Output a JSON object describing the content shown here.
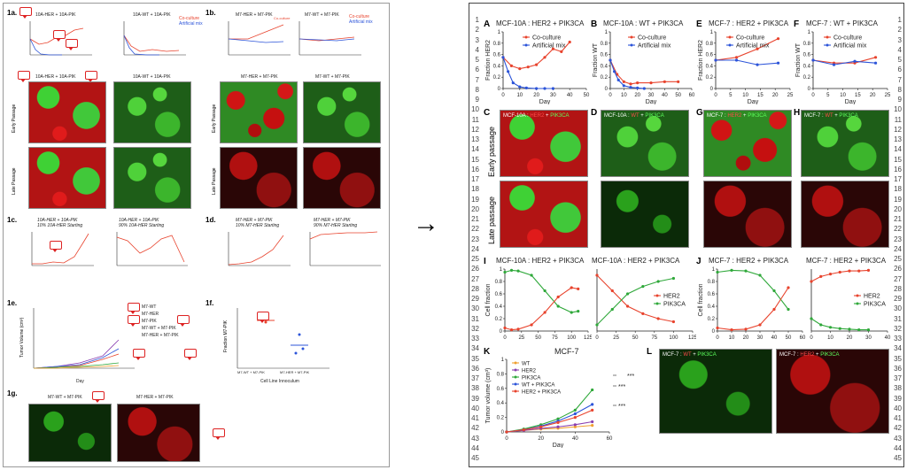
{
  "arrow": "→",
  "left_doc": {
    "labels": {
      "a": "1a.",
      "b": "1b.",
      "c": "1c.",
      "d": "1d.",
      "e": "1e.",
      "f": "1f.",
      "g": "1g."
    },
    "titles": {
      "a1": "10A-HER + 10A-PIK",
      "a2": "10A-WT + 10A-PIK",
      "b1": "M7-HER + M7-PIK",
      "b2": "M7-WT + M7-PIK",
      "img_a1": "10A-HER + 10A-PIK",
      "img_a2": "10A-WT + 10A-PIK",
      "img_b1": "M7-HER + M7-PIK",
      "img_b2": "M7-WT + M7-PIK",
      "c1": "10A-HER + 10A-PIK",
      "c1_sub": "10% 10A-HER Starting",
      "c2": "10A-HER + 10A-PIK",
      "c2_sub": "90% 10A-HER Starting",
      "d1": "M7-HER + M7-PIK",
      "d1_sub": "10% M7-HER Starting",
      "d2": "M7-HER + M7-PIK",
      "d2_sub": "90% M7-HER Starting",
      "g1": "M7-WT + M7-PIK",
      "g2": "M7-HER + M7-PIK"
    },
    "legend_ab": [
      "Co-culture",
      "Artificial mix"
    ],
    "row_labels": {
      "early": "Early Passage",
      "late": "Late Passage"
    },
    "e_legend": [
      "M7-WT",
      "M7-HER",
      "M7-PIK",
      "M7-WT + M7-PIK",
      "M7-HER + M7-PIK"
    ],
    "e_axes": {
      "y": "Tumor Volume (cm³)",
      "x": "Day"
    },
    "f_axes": {
      "y": "Fraction M7-PIK",
      "x": "Cell Line Innoculum"
    },
    "f_ticks": [
      "M7-WT + M7-PIK",
      "M7-HER + M7-PIK"
    ]
  },
  "right_doc": {
    "row_numbers": [
      "1",
      "2",
      "3",
      "4",
      "5",
      "6",
      "7",
      "8",
      "9",
      "10",
      "11",
      "12",
      "13",
      "14",
      "15",
      "16",
      "17",
      "18",
      "19",
      "20",
      "21",
      "22",
      "23",
      "24",
      "25",
      "26",
      "27",
      "28",
      "29",
      "30",
      "31",
      "32",
      "33",
      "34",
      "35",
      "36",
      "37",
      "38",
      "39",
      "40",
      "41",
      "42",
      "43",
      "44",
      "45"
    ],
    "row_numbers_right": [
      "1",
      "2",
      "3",
      "4",
      "5",
      "6",
      "7",
      "8",
      "9",
      "10",
      "11",
      "12",
      "13",
      "14",
      "15",
      "16",
      "17",
      "18",
      "19",
      "20",
      "21",
      "22",
      "23",
      "24",
      "25",
      "26",
      "27",
      "28",
      "29",
      "30",
      "31",
      "32",
      "33",
      "34",
      "35",
      "36",
      "37",
      "38",
      "39",
      "40",
      "41",
      "42",
      "43",
      "44",
      "45"
    ],
    "panel_letters": {
      "A": "A",
      "B": "B",
      "C": "C",
      "D": "D",
      "E": "E",
      "F": "F",
      "G": "G",
      "H": "H",
      "I": "I",
      "J": "J",
      "K": "K",
      "L": "L"
    },
    "titles": {
      "A": "MCF-10A : HER2 + PIK3CA",
      "B": "MCF-10A : WT + PIK3CA",
      "E": "MCF-7 : HER2 + PIK3CA",
      "F": "MCF-7 : WT + PIK3CA",
      "I1": "MCF-10A : HER2 + PIK3CA",
      "I2": "MCF-10A : HER2 + PIK3CA",
      "J1": "MCF-7 : HER2 + PIK3CA",
      "J2": "MCF-7 : HER2 + PIK3CA",
      "K": "MCF-7"
    },
    "legend_AB": [
      "Co-culture",
      "Artificial mix"
    ],
    "legend_IJ": [
      "HER2",
      "PIK3CA"
    ],
    "legend_K": [
      "WT",
      "HER2",
      "PIK3CA",
      "WT + PIK3CA",
      "HER2 + PIK3CA"
    ],
    "ylabels": {
      "A": "Fraction HER2",
      "B": "Fraction WT",
      "E": "Fraction HER2",
      "F": "Fraction WT",
      "I": "Cell fraction",
      "J": "Cell fraction",
      "K": "Tumor volume (cm³)"
    },
    "xlabel": "Day",
    "row_labels": {
      "early": "Early passage",
      "late": "Late passage"
    },
    "micro_captions": {
      "C": [
        "MCF-10A : ",
        "HER2",
        " + ",
        "PIK3CA"
      ],
      "D": [
        "MCF-10A : ",
        "WT",
        " + ",
        "PIK3CA"
      ],
      "G": [
        "MCF-7 : ",
        "HER2",
        " + ",
        "PIK3CA"
      ],
      "H": [
        "MCF-7 : ",
        "WT",
        " + ",
        "PIK3CA"
      ],
      "L1": [
        "MCF-7 : ",
        "WT",
        " + ",
        "PIK3CA"
      ],
      "L2": [
        "MCF-7 : ",
        "HER2",
        " + ",
        "PIK3CA"
      ]
    },
    "significance": [
      "***",
      "***",
      "***"
    ]
  },
  "colors": {
    "red": "#e8432d",
    "blue": "#2c54d9",
    "green": "#2fa83a",
    "orange": "#f0a030",
    "purple": "#8a3fb0",
    "micro_red": "#c81414",
    "micro_green": "#3ec132"
  },
  "chart_data": [
    {
      "id": "A",
      "type": "line",
      "title": "MCF-10A : HER2 + PIK3CA",
      "xlabel": "Day",
      "ylabel": "Fraction HER2",
      "xlim": [
        0,
        50
      ],
      "ylim": [
        0,
        1
      ],
      "xticks": [
        0,
        10,
        20,
        30,
        40,
        50
      ],
      "yticks": [
        0,
        0.2,
        0.4,
        0.6,
        0.8,
        1.0
      ],
      "series": [
        {
          "name": "Co-culture",
          "color": "#e8432d",
          "x": [
            0,
            5,
            10,
            15,
            20,
            25,
            30,
            35,
            40
          ],
          "y": [
            0.55,
            0.4,
            0.35,
            0.38,
            0.42,
            0.55,
            0.7,
            0.65,
            0.82
          ]
        },
        {
          "name": "Artificial mix",
          "color": "#2c54d9",
          "x": [
            0,
            3,
            6,
            10,
            14,
            20,
            25,
            30
          ],
          "y": [
            0.55,
            0.3,
            0.1,
            0.03,
            0.01,
            0.0,
            0.0,
            0.0
          ]
        }
      ]
    },
    {
      "id": "B",
      "type": "line",
      "title": "MCF-10A : WT + PIK3CA",
      "xlabel": "Day",
      "ylabel": "Fraction WT",
      "xlim": [
        0,
        60
      ],
      "ylim": [
        0,
        1
      ],
      "xticks": [
        0,
        10,
        20,
        30,
        40,
        50,
        60
      ],
      "yticks": [
        0,
        0.2,
        0.4,
        0.6,
        0.8,
        1.0
      ],
      "series": [
        {
          "name": "Co-culture",
          "color": "#e8432d",
          "x": [
            0,
            5,
            10,
            15,
            20,
            30,
            40,
            50
          ],
          "y": [
            0.5,
            0.25,
            0.12,
            0.08,
            0.1,
            0.1,
            0.12,
            0.12
          ]
        },
        {
          "name": "Artificial mix",
          "color": "#2c54d9",
          "x": [
            0,
            3,
            6,
            10,
            15,
            20,
            25
          ],
          "y": [
            0.5,
            0.3,
            0.15,
            0.05,
            0.02,
            0.01,
            0.0
          ]
        }
      ]
    },
    {
      "id": "E",
      "type": "line",
      "title": "MCF-7 : HER2 + PIK3CA",
      "xlabel": "Day",
      "ylabel": "Fraction HER2",
      "xlim": [
        0,
        25
      ],
      "ylim": [
        0,
        1
      ],
      "xticks": [
        0,
        5,
        10,
        15,
        20,
        25
      ],
      "yticks": [
        0,
        0.2,
        0.4,
        0.6,
        0.8,
        1.0
      ],
      "series": [
        {
          "name": "Co-culture",
          "color": "#e8432d",
          "x": [
            0,
            7,
            14,
            21
          ],
          "y": [
            0.5,
            0.55,
            0.7,
            0.88
          ]
        },
        {
          "name": "Artificial mix",
          "color": "#2c54d9",
          "x": [
            0,
            7,
            14,
            21
          ],
          "y": [
            0.5,
            0.5,
            0.42,
            0.45
          ]
        }
      ]
    },
    {
      "id": "F",
      "type": "line",
      "title": "MCF-7 : WT + PIK3CA",
      "xlabel": "Day",
      "ylabel": "Fraction WT",
      "xlim": [
        0,
        25
      ],
      "ylim": [
        0,
        1
      ],
      "xticks": [
        0,
        5,
        10,
        15,
        20,
        25
      ],
      "yticks": [
        0,
        0.2,
        0.4,
        0.6,
        0.8,
        1.0
      ],
      "series": [
        {
          "name": "Co-culture",
          "color": "#e8432d",
          "x": [
            0,
            7,
            14,
            21
          ],
          "y": [
            0.5,
            0.45,
            0.45,
            0.55
          ]
        },
        {
          "name": "Artificial mix",
          "color": "#2c54d9",
          "x": [
            0,
            7,
            14,
            21
          ],
          "y": [
            0.5,
            0.42,
            0.48,
            0.45
          ]
        }
      ]
    },
    {
      "id": "I1",
      "type": "line",
      "title": "MCF-10A : HER2 + PIK3CA",
      "xlabel": "",
      "ylabel": "Cell fraction",
      "xlim": [
        0,
        125
      ],
      "ylim": [
        0,
        1
      ],
      "xticks": [
        0,
        25,
        50,
        75,
        100,
        125
      ],
      "yticks": [
        0,
        0.2,
        0.4,
        0.6,
        0.8,
        1.0
      ],
      "series": [
        {
          "name": "",
          "color": "#2fa83a",
          "x": [
            0,
            10,
            20,
            40,
            60,
            80,
            100,
            110
          ],
          "y": [
            0.95,
            0.98,
            0.97,
            0.9,
            0.65,
            0.4,
            0.3,
            0.32
          ]
        },
        {
          "name": "",
          "color": "#e8432d",
          "x": [
            0,
            10,
            20,
            40,
            60,
            80,
            100,
            110
          ],
          "y": [
            0.05,
            0.02,
            0.03,
            0.1,
            0.3,
            0.55,
            0.7,
            0.68
          ]
        }
      ]
    },
    {
      "id": "I2",
      "type": "line",
      "title": "MCF-10A : HER2 + PIK3CA",
      "xlabel": "",
      "ylabel": "",
      "xlim": [
        0,
        125
      ],
      "ylim": [
        0,
        1
      ],
      "xticks": [
        0,
        25,
        50,
        75,
        100,
        125
      ],
      "yticks": [],
      "series": [
        {
          "name": "HER2",
          "color": "#e8432d",
          "x": [
            0,
            20,
            40,
            60,
            80,
            100
          ],
          "y": [
            0.9,
            0.65,
            0.4,
            0.28,
            0.2,
            0.15
          ]
        },
        {
          "name": "PIK3CA",
          "color": "#2fa83a",
          "x": [
            0,
            20,
            40,
            60,
            80,
            100
          ],
          "y": [
            0.1,
            0.35,
            0.6,
            0.72,
            0.8,
            0.85
          ]
        }
      ]
    },
    {
      "id": "J1",
      "type": "line",
      "title": "MCF-7 : HER2 + PIK3CA",
      "xlabel": "",
      "ylabel": "Cell fraction",
      "xlim": [
        0,
        60
      ],
      "ylim": [
        0,
        1
      ],
      "xticks": [
        0,
        10,
        20,
        30,
        40,
        50,
        60
      ],
      "yticks": [
        0,
        0.2,
        0.4,
        0.6,
        0.8,
        1.0
      ],
      "series": [
        {
          "name": "",
          "color": "#2fa83a",
          "x": [
            0,
            10,
            20,
            30,
            40,
            50
          ],
          "y": [
            0.95,
            0.98,
            0.97,
            0.9,
            0.65,
            0.35
          ]
        },
        {
          "name": "",
          "color": "#e8432d",
          "x": [
            0,
            10,
            20,
            30,
            40,
            50
          ],
          "y": [
            0.05,
            0.02,
            0.03,
            0.1,
            0.35,
            0.7
          ]
        }
      ]
    },
    {
      "id": "J2",
      "type": "line",
      "title": "MCF-7 : HER2 + PIK3CA",
      "xlabel": "",
      "ylabel": "",
      "xlim": [
        0,
        40
      ],
      "ylim": [
        0,
        1
      ],
      "xticks": [
        0,
        10,
        20,
        30,
        40
      ],
      "yticks": [],
      "series": [
        {
          "name": "HER2",
          "color": "#e8432d",
          "x": [
            0,
            5,
            10,
            15,
            20,
            25,
            30
          ],
          "y": [
            0.8,
            0.88,
            0.92,
            0.95,
            0.97,
            0.97,
            0.98
          ]
        },
        {
          "name": "PIK3CA",
          "color": "#2fa83a",
          "x": [
            0,
            5,
            10,
            15,
            20,
            25,
            30
          ],
          "y": [
            0.2,
            0.1,
            0.06,
            0.04,
            0.03,
            0.02,
            0.02
          ]
        }
      ]
    },
    {
      "id": "K",
      "type": "line",
      "title": "MCF-7",
      "xlabel": "Day",
      "ylabel": "Tumor volume (cm³)",
      "xlim": [
        0,
        60
      ],
      "ylim": [
        0,
        1.0
      ],
      "xticks": [
        0,
        20,
        40,
        60
      ],
      "yticks": [
        0,
        0.2,
        0.4,
        0.6,
        0.8,
        1.0
      ],
      "series": [
        {
          "name": "WT",
          "color": "#f0a030",
          "x": [
            0,
            10,
            20,
            30,
            40,
            50
          ],
          "y": [
            0,
            0.02,
            0.04,
            0.05,
            0.07,
            0.09
          ]
        },
        {
          "name": "HER2",
          "color": "#8a3fb0",
          "x": [
            0,
            10,
            20,
            30,
            40,
            50
          ],
          "y": [
            0,
            0.02,
            0.05,
            0.07,
            0.1,
            0.14
          ]
        },
        {
          "name": "PIK3CA",
          "color": "#2fa83a",
          "x": [
            0,
            10,
            20,
            30,
            40,
            50
          ],
          "y": [
            0,
            0.04,
            0.1,
            0.18,
            0.3,
            0.58
          ]
        },
        {
          "name": "WT + PIK3CA",
          "color": "#2c54d9",
          "x": [
            0,
            10,
            20,
            30,
            40,
            50
          ],
          "y": [
            0,
            0.03,
            0.08,
            0.15,
            0.25,
            0.38
          ]
        },
        {
          "name": "HER2 + PIK3CA",
          "color": "#e8432d",
          "x": [
            0,
            10,
            20,
            30,
            40,
            50
          ],
          "y": [
            0,
            0.03,
            0.07,
            0.13,
            0.2,
            0.3
          ]
        }
      ]
    }
  ]
}
